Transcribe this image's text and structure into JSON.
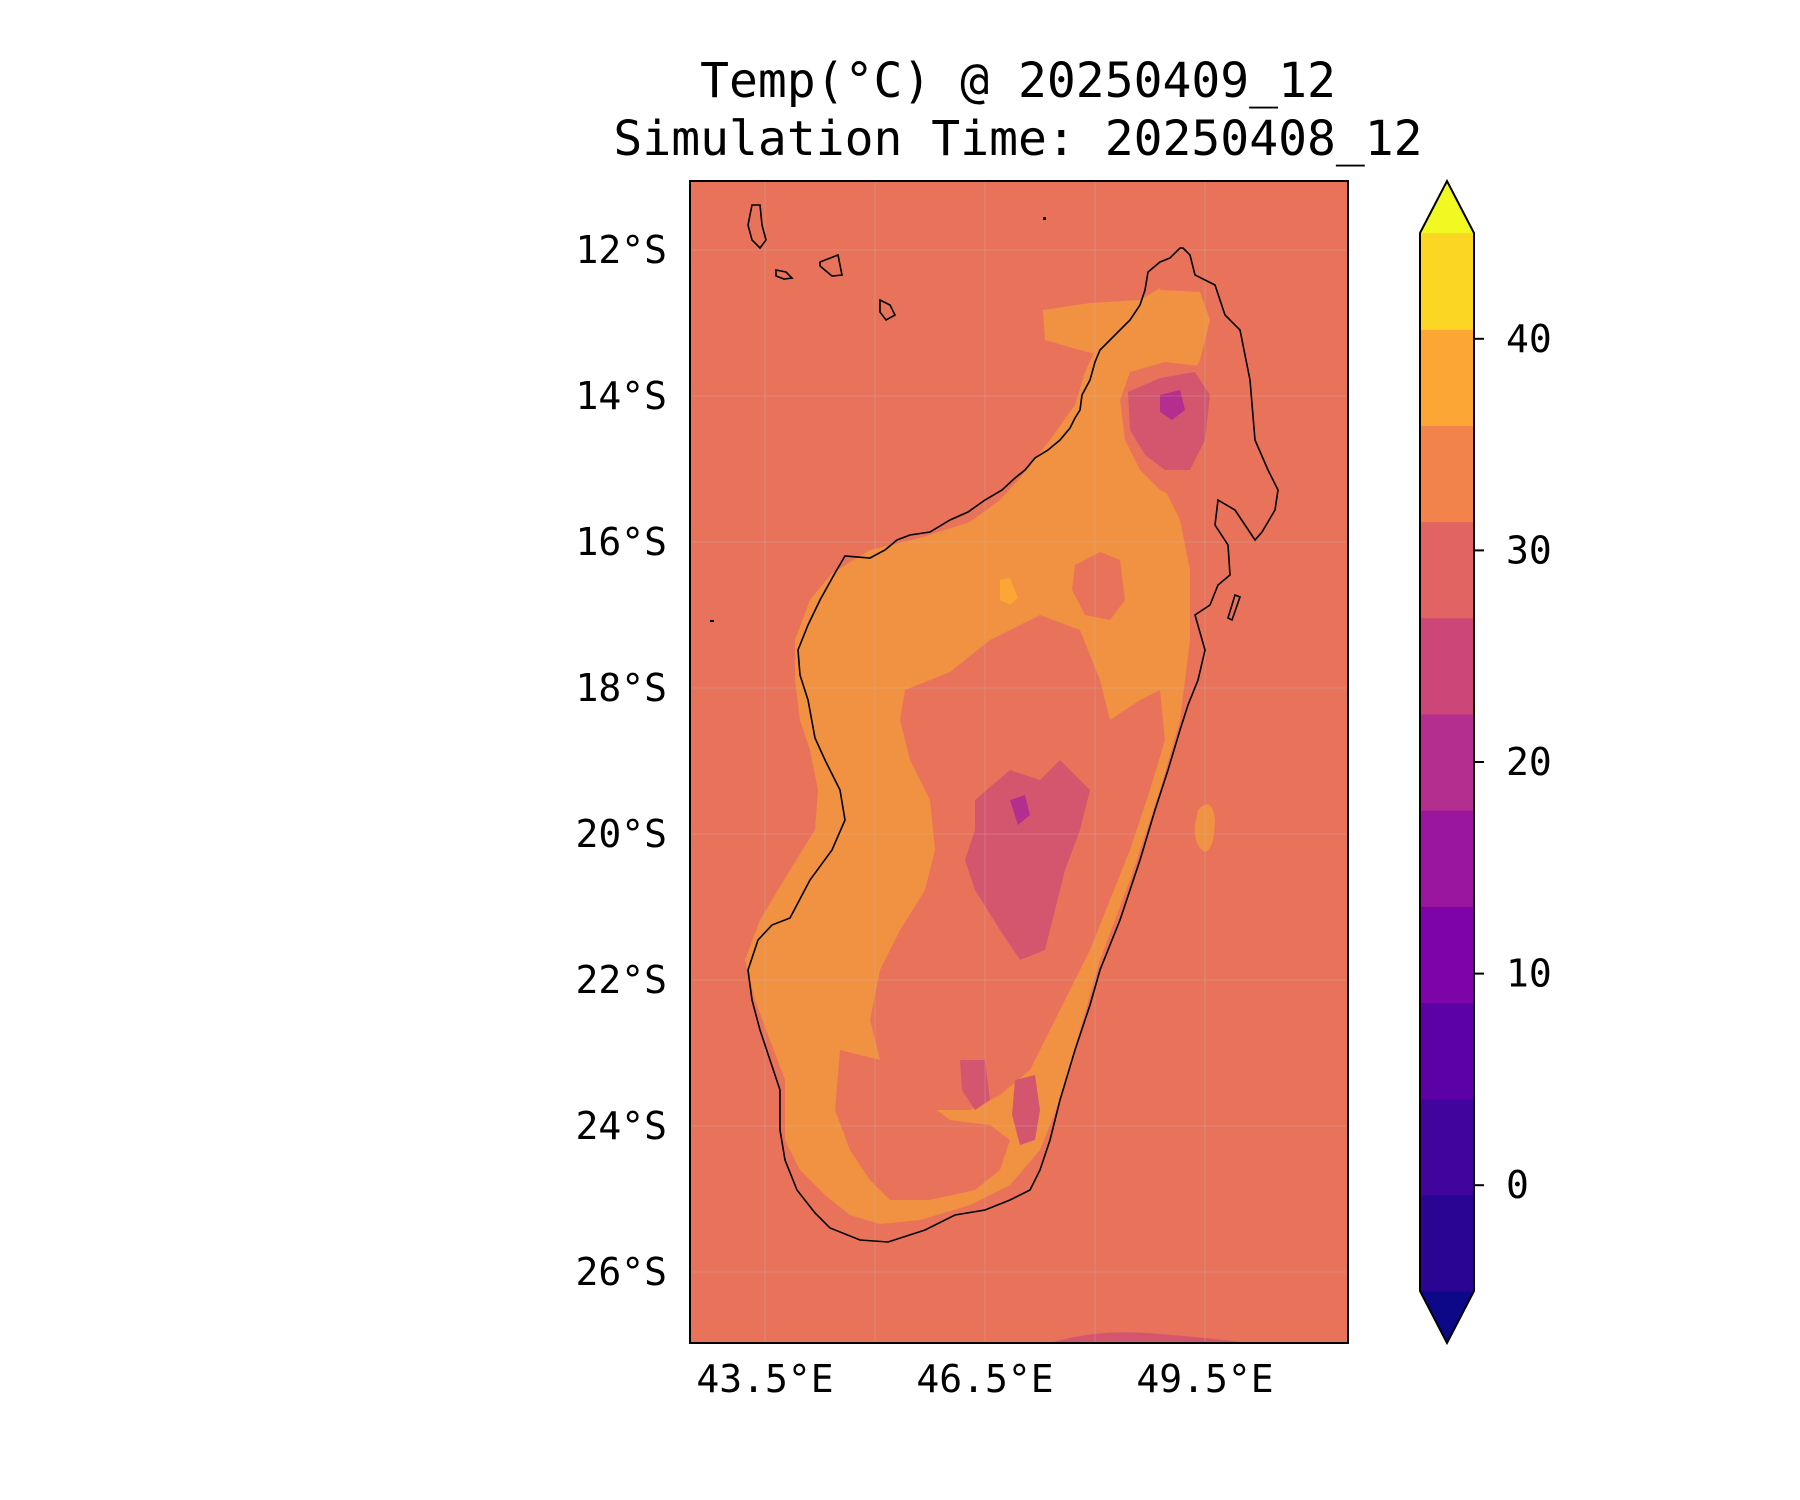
{
  "title": {
    "line1": "Temp(°C) @ 20250409_12",
    "line2": "Simulation Time: 20250408_12"
  },
  "map": {
    "variable": "Temp(°C)",
    "region": "Madagascar",
    "lon_range": [
      42.5,
      51.5
    ],
    "lat_range": [
      -27.0,
      -11.1
    ],
    "lon_ticks": [
      "43.5°E",
      "46.5°E",
      "49.5°E"
    ],
    "lat_ticks": [
      "12°S",
      "14°S",
      "16°S",
      "18°S",
      "20°S",
      "22°S",
      "24°S",
      "26°S"
    ],
    "gridlines": true,
    "coastline": true,
    "background_temp_band": "25–30",
    "island_interior_band": "30–35",
    "highland_bands": [
      "20–25",
      "15–20"
    ]
  },
  "colorbar": {
    "range": [
      -5,
      45
    ],
    "step": 5,
    "ticks": [
      "0",
      "10",
      "20",
      "30",
      "40"
    ],
    "extend": "both",
    "colors": [
      "#0d0887",
      "#2a0593",
      "#41049d",
      "#5c01a6",
      "#7e03a8",
      "#9a169f",
      "#b42e8f",
      "#cc4778",
      "#e16462",
      "#f2844b",
      "#fca636",
      "#fbd724",
      "#f0f921"
    ]
  }
}
